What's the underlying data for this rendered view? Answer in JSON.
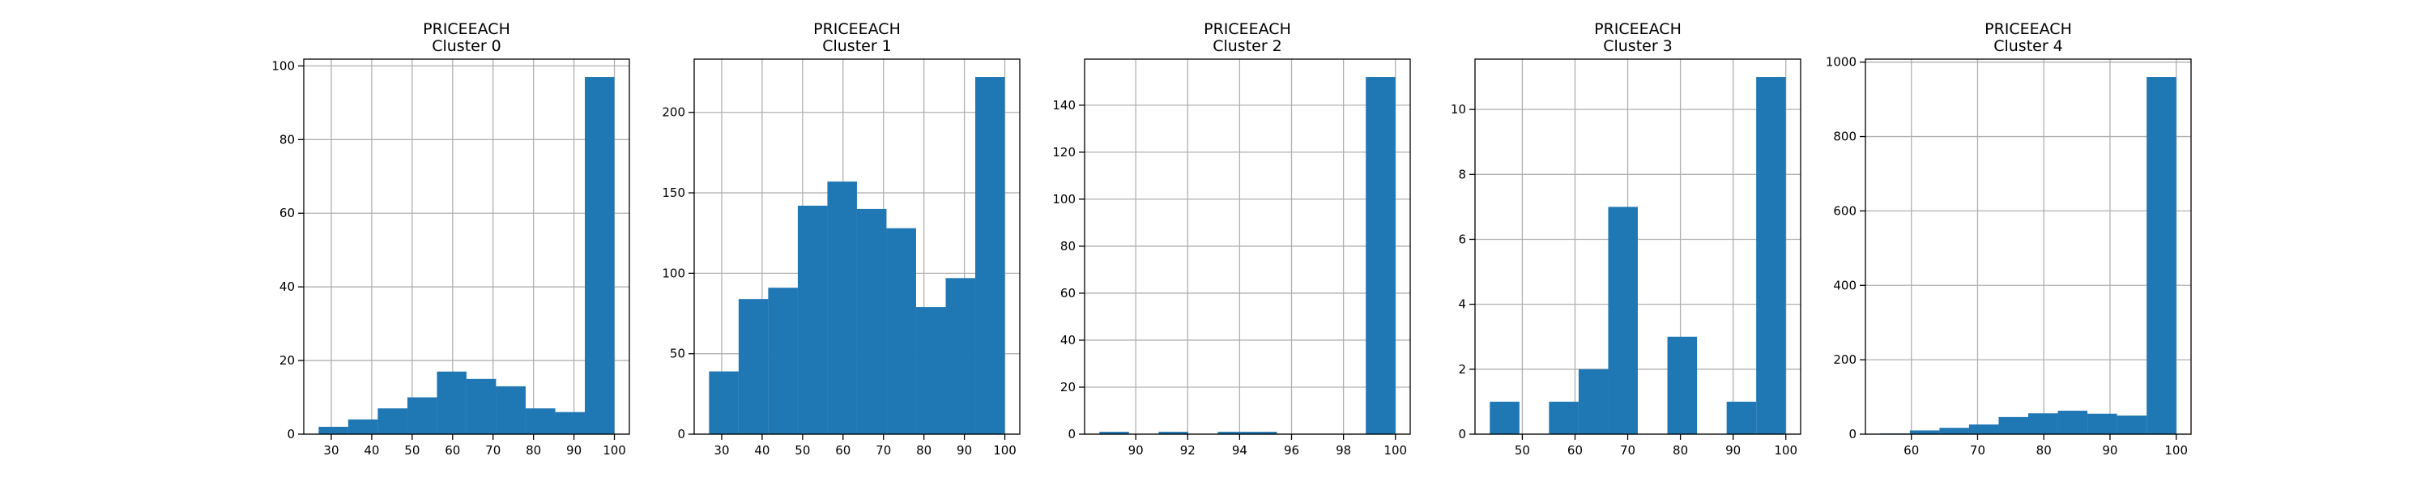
{
  "chart_data": [
    {
      "type": "bar",
      "title": "PRICEEACH",
      "subtitle": "Cluster 0",
      "bin_edges": [
        26.88,
        34.19,
        41.5,
        48.82,
        56.13,
        63.44,
        70.75,
        78.06,
        85.38,
        92.69,
        100.0
      ],
      "values": [
        2,
        4,
        7,
        10,
        17,
        15,
        13,
        7,
        6,
        97
      ],
      "xlim": [
        23.2,
        103.7
      ],
      "ylim": [
        0,
        101.85
      ],
      "xticks": [
        30,
        40,
        50,
        60,
        70,
        80,
        90,
        100
      ],
      "yticks": [
        0,
        20,
        40,
        60,
        80,
        100
      ],
      "grid": true
    },
    {
      "type": "bar",
      "title": "PRICEEACH",
      "subtitle": "Cluster 1",
      "bin_edges": [
        26.88,
        34.19,
        41.5,
        48.82,
        56.13,
        63.44,
        70.75,
        78.06,
        85.38,
        92.69,
        100.0
      ],
      "values": [
        39,
        84,
        91,
        142,
        157,
        140,
        128,
        79,
        97,
        222
      ],
      "xlim": [
        23.2,
        103.7
      ],
      "ylim": [
        0,
        233.1
      ],
      "xticks": [
        30,
        40,
        50,
        60,
        70,
        80,
        90,
        100
      ],
      "yticks": [
        0,
        50,
        100,
        150,
        200
      ],
      "grid": true
    },
    {
      "type": "bar",
      "title": "PRICEEACH",
      "subtitle": "Cluster 2",
      "bin_edges": [
        88.6,
        89.74,
        90.88,
        92.02,
        93.16,
        94.3,
        95.44,
        96.58,
        97.72,
        98.86,
        100.0
      ],
      "values": [
        1,
        0,
        1,
        0,
        1,
        1,
        0,
        0,
        0,
        152
      ],
      "xlim": [
        88.03,
        100.57
      ],
      "ylim": [
        0,
        159.6
      ],
      "xticks": [
        90,
        92,
        94,
        96,
        98,
        100
      ],
      "yticks": [
        0,
        20,
        40,
        60,
        80,
        100,
        120,
        140
      ],
      "grid": true
    },
    {
      "type": "bar",
      "title": "PRICEEACH",
      "subtitle": "Cluster 3",
      "bin_edges": [
        43.83,
        49.45,
        55.06,
        60.68,
        66.3,
        71.91,
        77.53,
        83.15,
        88.77,
        94.38,
        100.0
      ],
      "values": [
        1,
        0,
        1,
        2,
        7,
        0,
        3,
        0,
        1,
        11
      ],
      "xlim": [
        41.02,
        102.81
      ],
      "ylim": [
        0,
        11.55
      ],
      "xticks": [
        50,
        60,
        70,
        80,
        90,
        100
      ],
      "yticks": [
        0,
        2,
        4,
        6,
        8,
        10
      ],
      "grid": true
    },
    {
      "type": "bar",
      "title": "PRICEEACH",
      "subtitle": "Cluster 4",
      "bin_edges": [
        55.3,
        59.77,
        64.24,
        68.71,
        73.18,
        77.65,
        82.12,
        86.59,
        91.06,
        95.53,
        100.0
      ],
      "values": [
        2,
        10,
        17,
        26,
        46,
        56,
        63,
        55,
        50,
        960
      ],
      "xlim": [
        53.06,
        102.24
      ],
      "ylim": [
        0,
        1008
      ],
      "xticks": [
        60,
        70,
        80,
        90,
        100
      ],
      "yticks": [
        0,
        200,
        400,
        600,
        800,
        1000
      ],
      "grid": true
    }
  ]
}
